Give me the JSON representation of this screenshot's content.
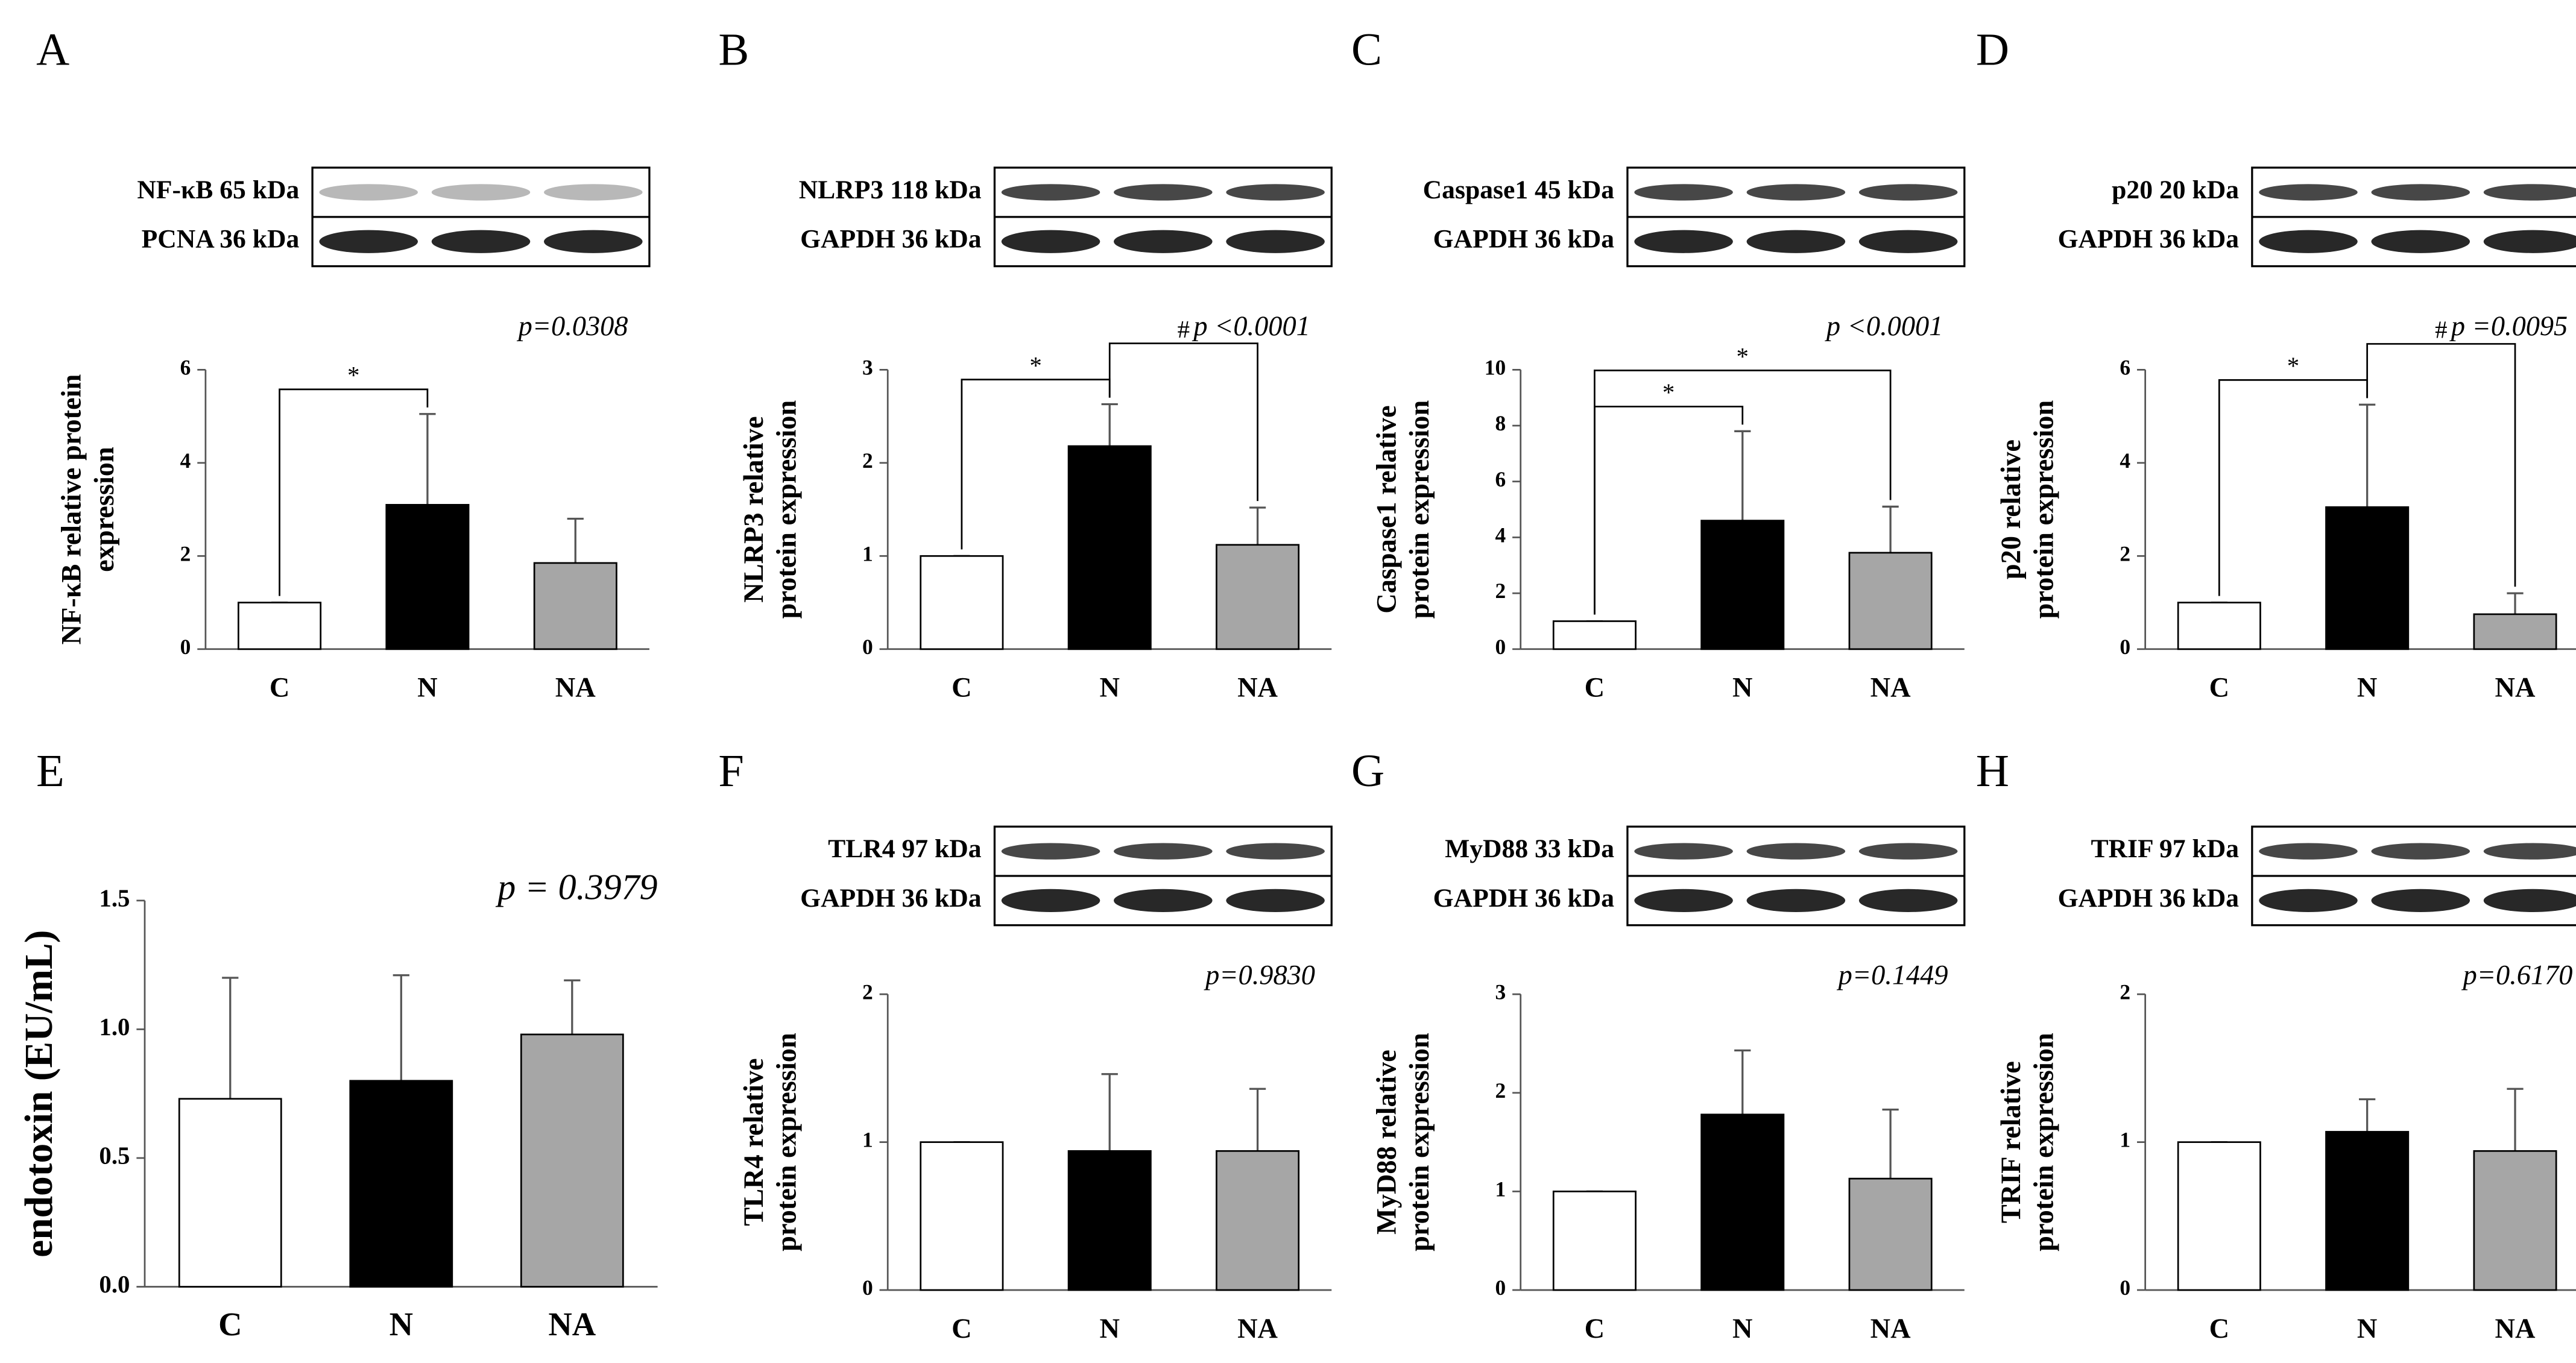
{
  "chart_data": [
    {
      "type": "bar",
      "panel": "A",
      "blots": [
        "NF-κB 65 kDa",
        "PCNA 36 kDa"
      ],
      "p_value": "p=0.0308",
      "ylabel": [
        "NF-κB relative protein",
        "expression"
      ],
      "categories": [
        "C",
        "N",
        "NA"
      ],
      "values": [
        1,
        3.1,
        1.85
      ],
      "errors": [
        0,
        1.95,
        0.95
      ],
      "colors": [
        "#ffffff",
        "#000000",
        "#a6a6a6"
      ],
      "ylim": [
        0,
        6
      ],
      "yticks": [
        0,
        2,
        4,
        6
      ],
      "significance": [
        {
          "groups": [
            "C",
            "N"
          ],
          "label": "*"
        }
      ]
    },
    {
      "type": "bar",
      "panel": "B",
      "blots": [
        "NLRP3 118 kDa",
        "GAPDH 36 kDa"
      ],
      "p_value": "p <0.0001",
      "ylabel": [
        "NLRP3 relative",
        "protein expression"
      ],
      "categories": [
        "C",
        "N",
        "NA"
      ],
      "values": [
        1,
        2.18,
        1.12
      ],
      "errors": [
        0,
        0.45,
        0.4
      ],
      "colors": [
        "#ffffff",
        "#000000",
        "#a6a6a6"
      ],
      "ylim": [
        0,
        3
      ],
      "yticks": [
        0,
        1,
        2,
        3
      ],
      "significance": [
        {
          "groups": [
            "C",
            "N"
          ],
          "label": "*"
        },
        {
          "groups": [
            "N",
            "NA"
          ],
          "label": "#"
        }
      ]
    },
    {
      "type": "bar",
      "panel": "C",
      "blots": [
        "Caspase1 45 kDa",
        "GAPDH 36 kDa"
      ],
      "p_value": "p <0.0001",
      "ylabel": [
        "Caspase1 relative",
        "protein expression"
      ],
      "categories": [
        "C",
        "N",
        "NA"
      ],
      "values": [
        1,
        4.6,
        3.45
      ],
      "errors": [
        0,
        3.2,
        1.65
      ],
      "colors": [
        "#ffffff",
        "#000000",
        "#a6a6a6"
      ],
      "ylim": [
        0,
        10
      ],
      "yticks": [
        0,
        2,
        4,
        6,
        8,
        10
      ],
      "significance": [
        {
          "groups": [
            "C",
            "N"
          ],
          "label": "*"
        },
        {
          "groups": [
            "C",
            "NA"
          ],
          "label": "*"
        }
      ]
    },
    {
      "type": "bar",
      "panel": "D",
      "blots": [
        "p20 20 kDa",
        "GAPDH 36 kDa"
      ],
      "p_value": "p =0.0095",
      "ylabel": [
        "p20 relative",
        "protein expression"
      ],
      "categories": [
        "C",
        "N",
        "NA"
      ],
      "values": [
        1,
        3.05,
        0.75
      ],
      "errors": [
        0,
        2.2,
        0.45
      ],
      "colors": [
        "#ffffff",
        "#000000",
        "#a6a6a6"
      ],
      "ylim": [
        0,
        6
      ],
      "yticks": [
        0,
        2,
        4,
        6
      ],
      "significance": [
        {
          "groups": [
            "C",
            "N"
          ],
          "label": "*"
        },
        {
          "groups": [
            "N",
            "NA"
          ],
          "label": "#"
        }
      ]
    },
    {
      "type": "bar",
      "panel": "E",
      "p_value": "p = 0.3979",
      "ylabel": [
        "endotoxin (EU/mL)"
      ],
      "categories": [
        "C",
        "N",
        "NA"
      ],
      "values": [
        0.73,
        0.8,
        0.98
      ],
      "errors": [
        0.47,
        0.41,
        0.21
      ],
      "colors": [
        "#ffffff",
        "#000000",
        "#a6a6a6"
      ],
      "ylim": [
        0,
        1.5
      ],
      "yticks": [
        {
          "value": 0,
          "label": "0.0"
        },
        {
          "value": 0.5,
          "label": "0.5"
        },
        {
          "value": 1,
          "label": "1.0"
        },
        {
          "value": 1.5,
          "label": "1.5"
        }
      ]
    },
    {
      "type": "bar",
      "panel": "F",
      "blots": [
        "TLR4 97 kDa",
        "GAPDH 36 kDa"
      ],
      "p_value": "p=0.9830",
      "ylabel": [
        "TLR4 relative",
        "protein expression"
      ],
      "categories": [
        "C",
        "N",
        "NA"
      ],
      "values": [
        1,
        0.94,
        0.94
      ],
      "errors": [
        0,
        0.52,
        0.42
      ],
      "colors": [
        "#ffffff",
        "#000000",
        "#a6a6a6"
      ],
      "ylim": [
        0,
        2
      ],
      "yticks": [
        0,
        1,
        2
      ]
    },
    {
      "type": "bar",
      "panel": "G",
      "blots": [
        "MyD88 33 kDa",
        "GAPDH 36 kDa"
      ],
      "p_value": "p=0.1449",
      "ylabel": [
        "MyD88 relative",
        "protein expression"
      ],
      "categories": [
        "C",
        "N",
        "NA"
      ],
      "values": [
        1,
        1.78,
        1.13
      ],
      "errors": [
        0,
        0.65,
        0.7
      ],
      "colors": [
        "#ffffff",
        "#000000",
        "#a6a6a6"
      ],
      "ylim": [
        0,
        3
      ],
      "yticks": [
        0,
        1,
        2,
        3
      ]
    },
    {
      "type": "bar",
      "panel": "H",
      "blots": [
        "TRIF 97 kDa",
        "GAPDH 36 kDa"
      ],
      "p_value": "p=0.6170",
      "ylabel": [
        "TRIF relative",
        "protein expression"
      ],
      "categories": [
        "C",
        "N",
        "NA"
      ],
      "values": [
        1,
        1.07,
        0.94
      ],
      "errors": [
        0,
        0.22,
        0.42
      ],
      "colors": [
        "#ffffff",
        "#000000",
        "#a6a6a6"
      ],
      "ylim": [
        0,
        2
      ],
      "yticks": [
        0,
        1,
        2
      ]
    }
  ]
}
